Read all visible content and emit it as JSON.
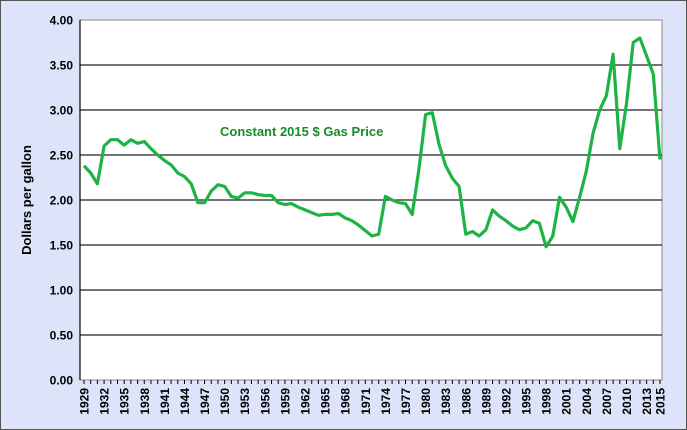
{
  "chart_data": {
    "type": "line",
    "title": "",
    "annotation": "Constant 2015 $ Gas Price",
    "xlabel": "",
    "ylabel": "Dollars per gallon",
    "ylim": [
      0,
      4
    ],
    "yticks": [
      "0.00",
      "0.50",
      "1.00",
      "1.50",
      "2.00",
      "2.50",
      "3.00",
      "3.50",
      "4.00"
    ],
    "xticks": [
      "1929",
      "1932",
      "1935",
      "1938",
      "1941",
      "1944",
      "1947",
      "1950",
      "1953",
      "1956",
      "1959",
      "1962",
      "1965",
      "1968",
      "1971",
      "1974",
      "1977",
      "1980",
      "1983",
      "1986",
      "1989",
      "1992",
      "1995",
      "1998",
      "2001",
      "2004",
      "2007",
      "2010",
      "2013",
      "2015"
    ],
    "grid": true,
    "colors": {
      "line": "#1db345",
      "annotation": "#1a8a2a",
      "background": "#dde4fa"
    },
    "series": [
      {
        "name": "Constant 2015 $ Gas Price",
        "x_start": 1929,
        "values": [
          2.38,
          2.3,
          2.18,
          2.6,
          2.67,
          2.67,
          2.61,
          2.67,
          2.63,
          2.65,
          2.57,
          2.5,
          2.44,
          2.39,
          2.3,
          2.26,
          2.18,
          1.97,
          1.97,
          2.1,
          2.17,
          2.15,
          2.04,
          2.02,
          2.08,
          2.08,
          2.06,
          2.05,
          2.05,
          1.97,
          1.95,
          1.96,
          1.92,
          1.89,
          1.86,
          1.83,
          1.84,
          1.84,
          1.85,
          1.8,
          1.77,
          1.72,
          1.66,
          1.6,
          1.62,
          2.04,
          2.0,
          1.97,
          1.96,
          1.84,
          2.34,
          2.95,
          2.97,
          2.62,
          2.38,
          2.24,
          2.15,
          1.62,
          1.65,
          1.6,
          1.67,
          1.89,
          1.82,
          1.77,
          1.71,
          1.67,
          1.69,
          1.77,
          1.74,
          1.48,
          1.6,
          2.03,
          1.92,
          1.76,
          2.03,
          2.32,
          2.74,
          3.0,
          3.16,
          3.62,
          2.57,
          3.07,
          3.75,
          3.8,
          3.6,
          3.4,
          2.45
        ]
      }
    ]
  }
}
